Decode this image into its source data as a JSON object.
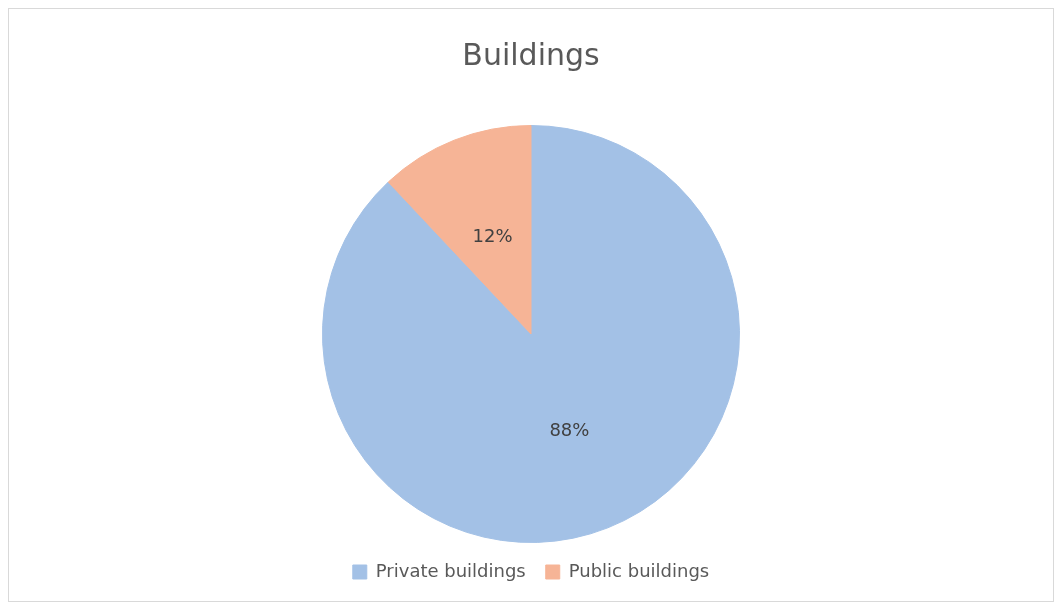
{
  "chart_data": {
    "type": "pie",
    "title": "Buildings",
    "categories": [
      "Private buildings",
      "Public buildings"
    ],
    "values": [
      88,
      12
    ],
    "colors": [
      "#a3c1e6",
      "#f6b496"
    ],
    "value_labels": [
      "88%",
      "12%"
    ],
    "legend": "bottom"
  }
}
